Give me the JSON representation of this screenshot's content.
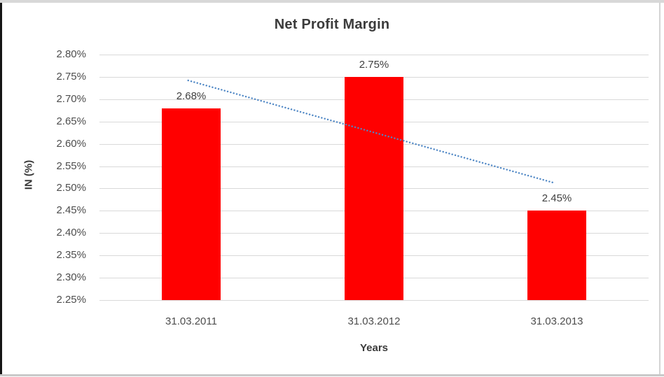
{
  "chart_data": {
    "type": "bar",
    "title": "Net Profit Margin",
    "xlabel": "Years",
    "ylabel": "IN (%)",
    "categories": [
      "31.03.2011",
      "31.03.2012",
      "31.03.2013"
    ],
    "values": [
      2.68,
      2.75,
      2.45
    ],
    "data_labels": [
      "2.68%",
      "2.75%",
      "2.45%"
    ],
    "ylim": [
      2.25,
      2.8
    ],
    "ytick_step": 0.05,
    "ytick_labels": [
      "2.80%",
      "2.75%",
      "2.70%",
      "2.65%",
      "2.60%",
      "2.55%",
      "2.50%",
      "2.45%",
      "2.40%",
      "2.35%",
      "2.30%",
      "2.25%"
    ],
    "grid": true,
    "legend": "none",
    "bar_color": "#ff0000",
    "grid_color": "#d9d9d9",
    "text_color": "#4d4d4d",
    "title_color": "#3b3b3b",
    "trendline": {
      "type": "linear",
      "style": "dotted",
      "color": "#4f87c5",
      "start_value": 2.742,
      "end_value": 2.512
    }
  }
}
